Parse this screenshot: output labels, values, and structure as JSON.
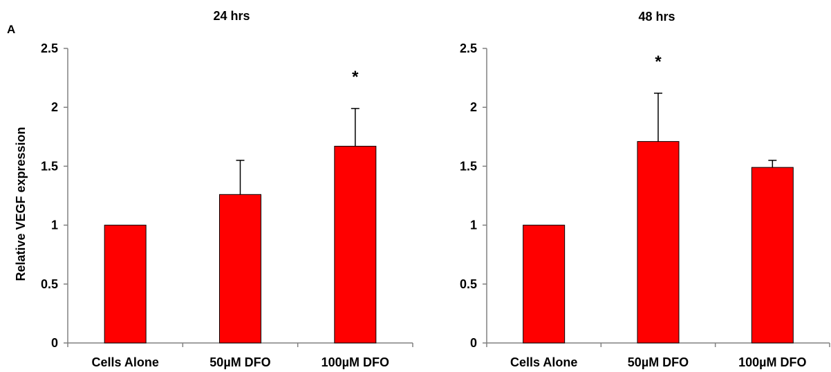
{
  "panel_label": "A",
  "chart_data": [
    {
      "type": "bar",
      "title": "24 hrs",
      "xlabel": "",
      "ylabel": "Relative VEGF expression",
      "ylim": [
        0,
        2.5
      ],
      "yticks": [
        "0",
        "0.5",
        "1",
        "1.5",
        "2",
        "2.5"
      ],
      "categories": [
        "Cells Alone",
        "50µM DFO",
        "100µM DFO"
      ],
      "values": [
        1.0,
        1.26,
        1.67
      ],
      "error_upper": [
        0,
        0.29,
        0.32
      ],
      "significance": [
        "",
        "",
        "*"
      ],
      "bar_color": "#ff0000",
      "grid": false
    },
    {
      "type": "bar",
      "title": "48 hrs",
      "xlabel": "",
      "ylabel": "",
      "ylim": [
        0,
        2.5
      ],
      "yticks": [
        "0",
        "0.5",
        "1",
        "1.5",
        "2",
        "2.5"
      ],
      "categories": [
        "Cells Alone",
        "50µM DFO",
        "100µM DFO"
      ],
      "values": [
        1.0,
        1.71,
        1.49
      ],
      "error_upper": [
        0,
        0.41,
        0.06
      ],
      "significance": [
        "",
        "*",
        ""
      ],
      "bar_color": "#ff0000",
      "grid": false
    }
  ]
}
